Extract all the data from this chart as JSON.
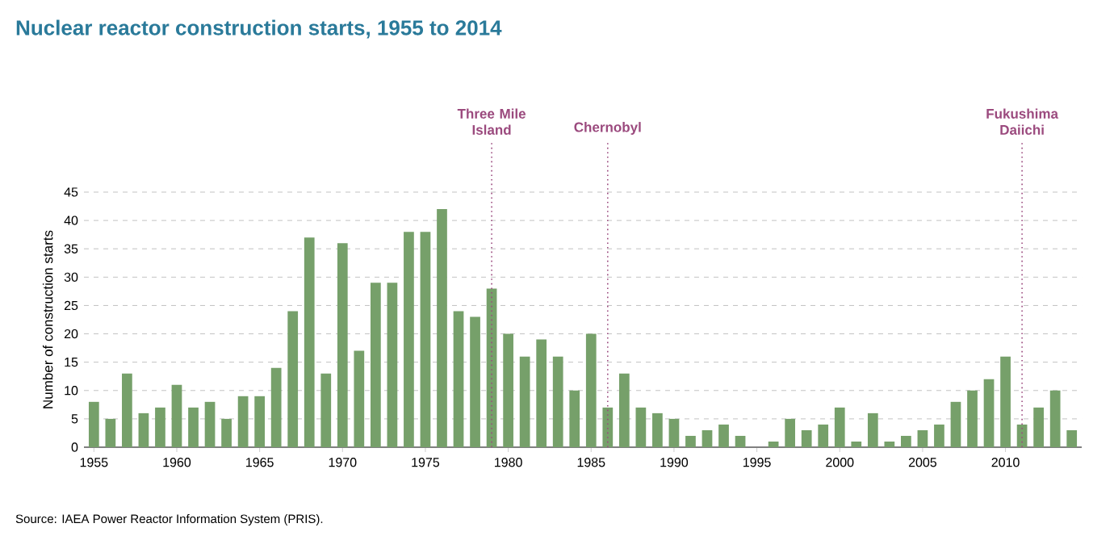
{
  "chart_data": {
    "type": "bar",
    "title": "Nuclear reactor construction starts, 1955 to 2014",
    "ylabel": "Number of construction starts",
    "annotations": [
      "Source: IAEA Power Reactor Information System (PRIS)."
    ],
    "x": [
      1955,
      1956,
      1957,
      1958,
      1959,
      1960,
      1961,
      1962,
      1963,
      1964,
      1965,
      1966,
      1967,
      1968,
      1969,
      1970,
      1971,
      1972,
      1973,
      1974,
      1975,
      1976,
      1977,
      1978,
      1979,
      1980,
      1981,
      1982,
      1983,
      1984,
      1985,
      1986,
      1987,
      1988,
      1989,
      1990,
      1991,
      1992,
      1993,
      1994,
      1995,
      1996,
      1997,
      1998,
      1999,
      2000,
      2001,
      2002,
      2003,
      2004,
      2005,
      2006,
      2007,
      2008,
      2009,
      2010,
      2011,
      2012,
      2013,
      2014
    ],
    "values": [
      8,
      5,
      13,
      6,
      7,
      11,
      7,
      8,
      5,
      9,
      9,
      14,
      24,
      37,
      13,
      36,
      17,
      29,
      29,
      38,
      38,
      42,
      24,
      23,
      28,
      20,
      16,
      19,
      16,
      10,
      20,
      7,
      13,
      7,
      6,
      5,
      2,
      3,
      4,
      2,
      0,
      1,
      5,
      3,
      4,
      7,
      1,
      6,
      1,
      2,
      3,
      4,
      8,
      10,
      12,
      16,
      4,
      7,
      10,
      3
    ],
    "color": "#76a06a",
    "xlim": [
      1954.4,
      2014.6
    ],
    "ylim": [
      0,
      45
    ],
    "xticks": [
      1955,
      1960,
      1965,
      1970,
      1975,
      1980,
      1985,
      1990,
      1995,
      2000,
      2005,
      2010
    ],
    "yticks": [
      0,
      5,
      10,
      15,
      20,
      25,
      30,
      35,
      40,
      45
    ],
    "grid": "y",
    "ref_lines": [
      {
        "axis": "x",
        "value": 1979,
        "label": "Three Mile Island",
        "color": "#9b4a7e",
        "line_style": "dotted"
      },
      {
        "axis": "x",
        "value": 1986,
        "label": "Chernobyl",
        "color": "#9b4a7e",
        "line_style": "dotted"
      },
      {
        "axis": "x",
        "value": 2011,
        "label": "Fukushima Daiichi",
        "color": "#9b4a7e",
        "line_style": "dotted"
      }
    ]
  }
}
